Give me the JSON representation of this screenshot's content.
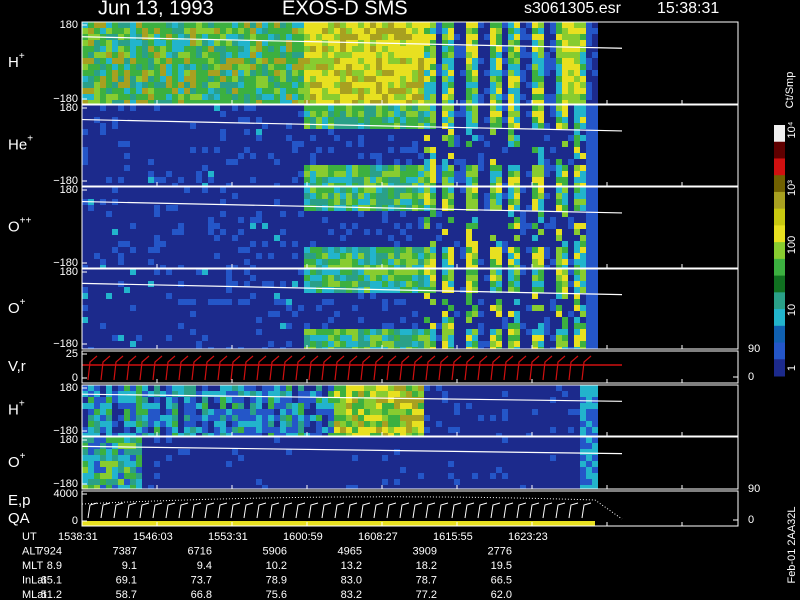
{
  "header": {
    "date": "Jun 13, 1993",
    "instrument": "EXOS-D SMS",
    "file": "s3061305.esr",
    "time": "15:38:31"
  },
  "panels": [
    {
      "name": "H",
      "charge": "+",
      "left_ticks": [
        "180",
        "−180"
      ]
    },
    {
      "name": "He",
      "charge": "+",
      "left_ticks": [
        "180",
        "−180"
      ]
    },
    {
      "name": "O",
      "charge": "++",
      "left_ticks": [
        "180",
        "−180"
      ]
    },
    {
      "name": "O",
      "charge": "+",
      "left_ticks": [
        "180",
        "−180"
      ]
    },
    {
      "name": "V,r",
      "left_ticks": [
        "25",
        "0"
      ],
      "right_ticks": [
        "90",
        "0"
      ]
    },
    {
      "name": "H",
      "charge": "+",
      "left_ticks": [
        "180",
        "−180"
      ]
    },
    {
      "name": "O",
      "charge": "+",
      "left_ticks": [
        "180",
        "−180"
      ]
    },
    {
      "name": "E,p",
      "name2": "QA",
      "left_ticks": [
        "4000",
        "0"
      ],
      "right_ticks": [
        "90",
        "0"
      ]
    }
  ],
  "colorbar": {
    "unit": "Ct/Smp",
    "labels": [
      "10⁴",
      "10³",
      "100",
      "10",
      "1"
    ]
  },
  "ephemeris": {
    "rows": [
      {
        "label": "UT",
        "values": [
          "1538:31",
          "1546:03",
          "1553:31",
          "1600:59",
          "1608:27",
          "1615:55",
          "1623:23"
        ]
      },
      {
        "label": "ALT",
        "values": [
          "7924",
          "7387",
          "6716",
          "5906",
          "4965",
          "3909",
          "2776"
        ]
      },
      {
        "label": "MLT",
        "values": [
          "8.9",
          "9.1",
          "9.4",
          "10.2",
          "13.2",
          "18.2",
          "19.5"
        ]
      },
      {
        "label": "InLat",
        "values": [
          "65.1",
          "69.1",
          "73.7",
          "78.9",
          "83.0",
          "78.7",
          "66.5"
        ]
      },
      {
        "label": "MLat",
        "values": [
          "51.2",
          "58.7",
          "66.8",
          "75.6",
          "83.2",
          "77.2",
          "62.0"
        ]
      }
    ]
  },
  "footer": "Feb-01 2AA32L"
}
